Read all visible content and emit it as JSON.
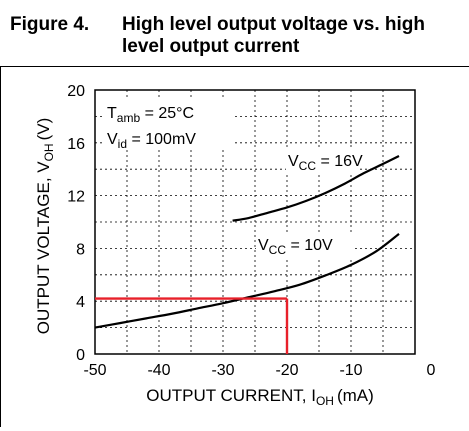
{
  "figure": {
    "label": "Figure 4.",
    "title": "High level output voltage vs. high level output current"
  },
  "chart_data": {
    "type": "line",
    "xlabel": "OUTPUT CURRENT, I",
    "xlabel_sub": "OH",
    "xlabel_unit": "(mA)",
    "ylabel": "OUTPUT VOLTAGE, V",
    "ylabel_sub": "OH",
    "ylabel_unit": "(V)",
    "xlim": [
      -50,
      0
    ],
    "ylim": [
      0,
      20
    ],
    "x_ticks": [
      -50,
      -40,
      -30,
      -20,
      -10,
      0
    ],
    "y_ticks": [
      0,
      4,
      8,
      12,
      16,
      20
    ],
    "grid": true,
    "conditions": [
      {
        "main": "T",
        "sub": "amb",
        "rest": " = 25°C"
      },
      {
        "main": "V",
        "sub": "id",
        "rest": " = 100mV"
      }
    ],
    "series": [
      {
        "name_main": "V",
        "name_sub": "CC",
        "name_rest": " = 16V",
        "x": [
          -28.5,
          -26,
          -23,
          -20,
          -17,
          -14,
          -11,
          -8,
          -5,
          -2.5
        ],
        "y": [
          10.1,
          10.3,
          10.7,
          11.1,
          11.6,
          12.2,
          12.9,
          13.7,
          14.4,
          15.0
        ]
      },
      {
        "name_main": "V",
        "name_sub": "CC",
        "name_rest": " = 10V",
        "x": [
          -50,
          -46,
          -42,
          -38,
          -34,
          -30,
          -26,
          -22,
          -18,
          -14,
          -10,
          -6,
          -2.5
        ],
        "y": [
          2.0,
          2.35,
          2.7,
          3.05,
          3.45,
          3.85,
          4.3,
          4.75,
          5.25,
          5.95,
          6.75,
          7.8,
          9.1
        ]
      }
    ],
    "highlight": {
      "x": -20,
      "y": 4.2,
      "color": "#e8202a"
    },
    "colors": {
      "curve": "#000000",
      "grid": "#000000",
      "highlight": "#e8202a"
    }
  }
}
